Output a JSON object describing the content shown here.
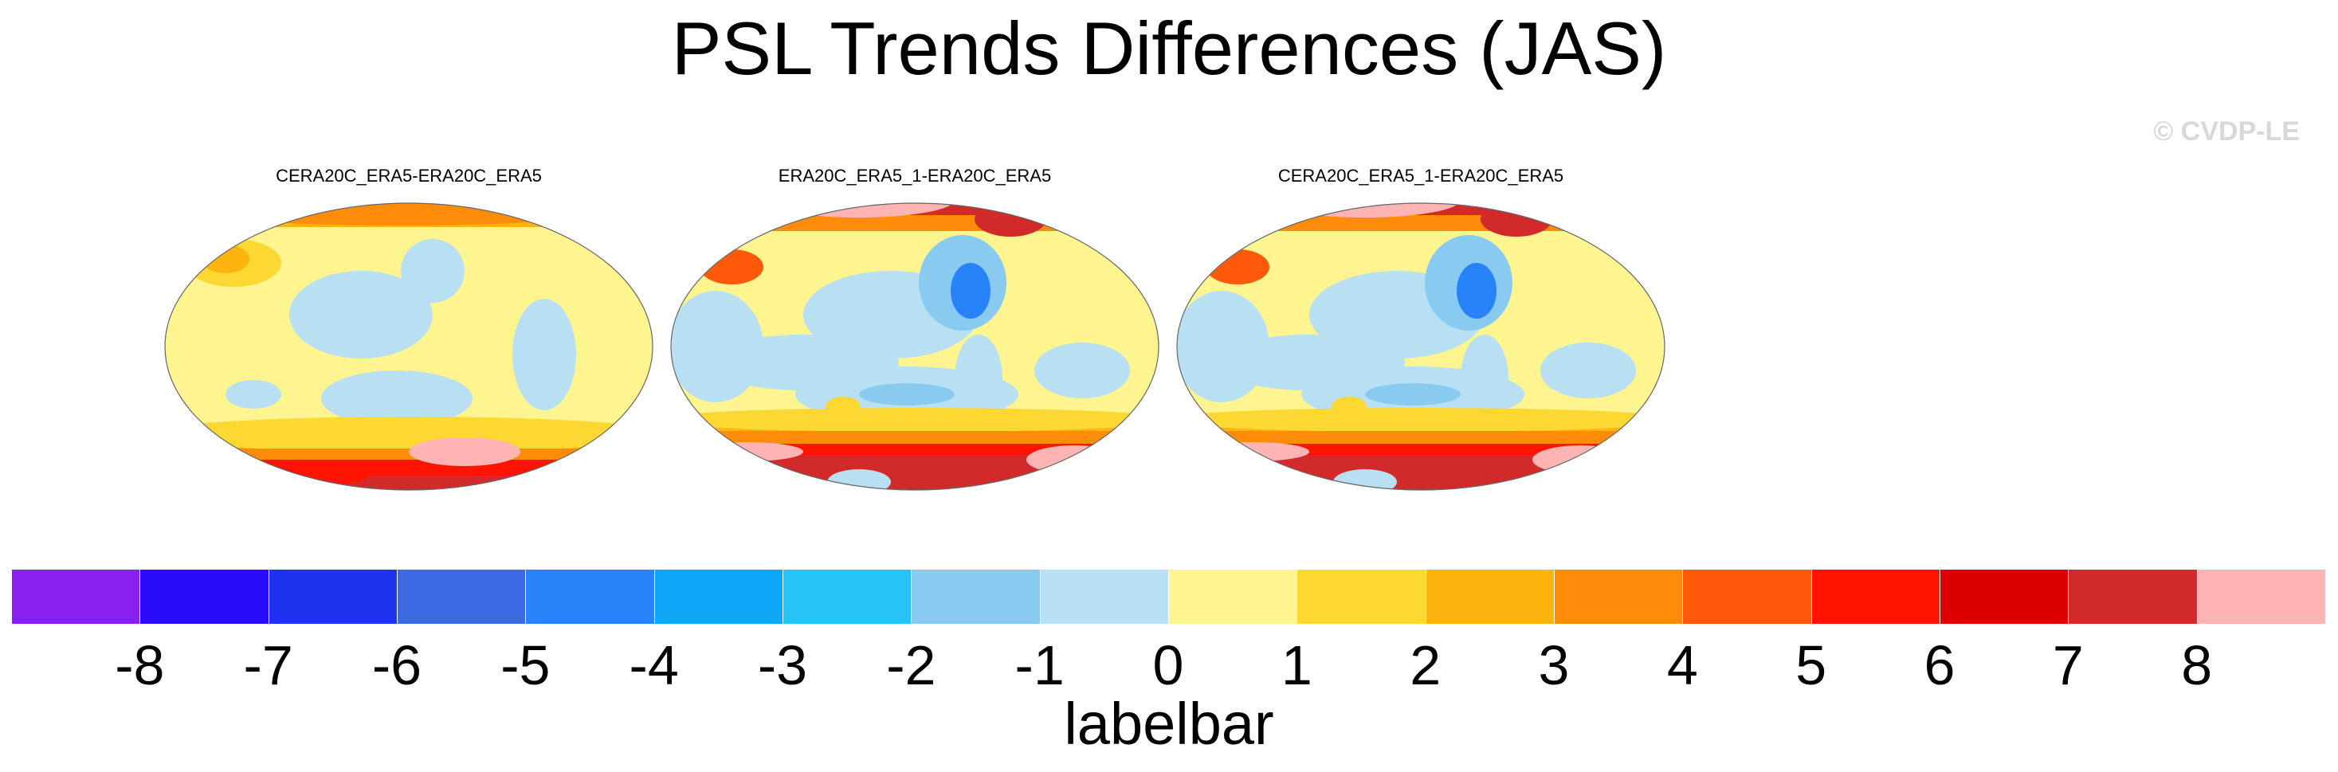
{
  "title": "PSL Trends Differences (JAS)",
  "credit": "© CVDP-LE",
  "panels": [
    {
      "title": "CERA20C_ERA5-ERA20C_ERA5",
      "variant": "a"
    },
    {
      "title": "ERA20C_ERA5_1-ERA20C_ERA5",
      "variant": "b"
    },
    {
      "title": "CERA20C_ERA5_1-ERA20C_ERA5",
      "variant": "b"
    }
  ],
  "labelbar": {
    "label": "labelbar",
    "colors": [
      "#8a20f0",
      "#2a0cf8",
      "#1e32f0",
      "#3c6ae0",
      "#2882f8",
      "#10a6f8",
      "#26c2f8",
      "#88caf0",
      "#b8e0f2",
      "#fef490",
      "#fed832",
      "#feb40e",
      "#fe8c0a",
      "#fe5a0a",
      "#fe1400",
      "#dc0000",
      "#d22a2a",
      "#ffb4b4"
    ],
    "ticks": [
      "-8",
      "-7",
      "-6",
      "-5",
      "-4",
      "-3",
      "-2",
      "-1",
      "0",
      "1",
      "2",
      "3",
      "4",
      "5",
      "6",
      "7",
      "8"
    ]
  }
}
